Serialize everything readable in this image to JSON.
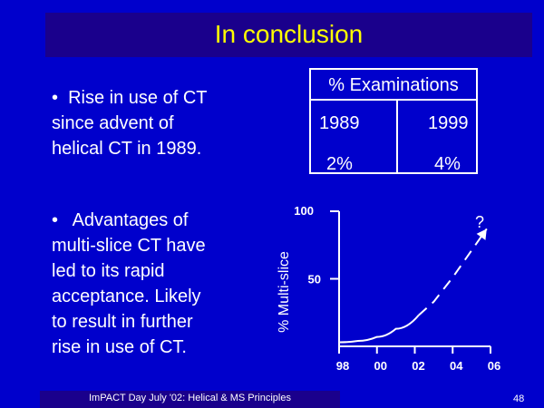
{
  "slide": {
    "title": "In conclusion",
    "bullets": [
      "•  Rise in use of CT\nsince advent of\nhelical CT in 1989.",
      "•   Advantages of\nmulti-slice CT have\nled to its rapid\nacceptance. Likely\nto result in further\nrise in use of CT."
    ],
    "footer": "ImPACT Day July '02: Helical & MS Principles",
    "page_number": "48"
  },
  "examinations_table": {
    "header": "% Examinations",
    "columns": [
      "1989",
      "1999"
    ],
    "values": [
      "2%",
      "4%"
    ]
  },
  "chart_data": {
    "type": "line",
    "ylabel": "% Multi-slice",
    "xlabel": "",
    "x_ticks": [
      "98",
      "00",
      "02",
      "04",
      "06"
    ],
    "y_ticks": [
      "50",
      "100"
    ],
    "ylim": [
      0,
      100
    ],
    "annotation": "?",
    "series": [
      {
        "style": "solid",
        "x": [
          1998,
          1999,
          2000,
          2001,
          2002.2
        ],
        "y": [
          3,
          4,
          7,
          13,
          23
        ]
      },
      {
        "style": "dashed",
        "x": [
          2002.2,
          2003,
          2004,
          2005.8
        ],
        "y": [
          23,
          33,
          51,
          87
        ]
      }
    ],
    "colors": {
      "line": "#ffffff",
      "axis": "#ffffff"
    }
  }
}
